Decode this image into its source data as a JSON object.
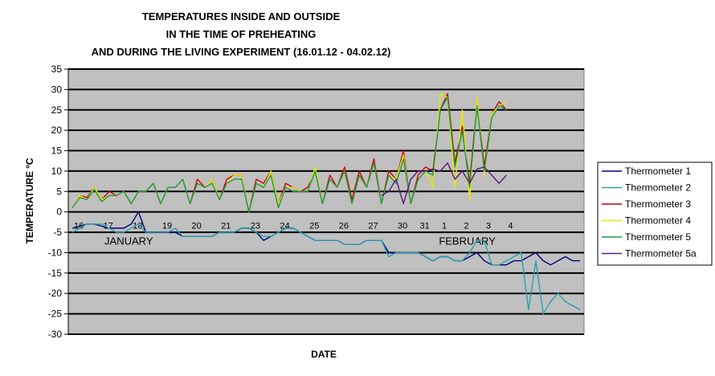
{
  "chart_data": {
    "type": "line",
    "title": [
      "TEMPERATURES INSIDE AND OUTSIDE",
      "IN THE TIME OF PREHEATING",
      "AND DURING THE LIVING EXPERIMENT (16.01.12 - 04.02.12)"
    ],
    "xlabel": "DATE",
    "ylabel": "TEMPERATURE ºC",
    "ylim": [
      -30,
      35
    ],
    "yticks": [
      35,
      30,
      25,
      20,
      15,
      10,
      5,
      0,
      -5,
      -10,
      -15,
      -20,
      -25,
      -30
    ],
    "grid": "horizontal",
    "legend": "right",
    "plot_background": "#c0c0c0",
    "x_count": 70,
    "date_labels": [
      {
        "label": "16",
        "x": 0
      },
      {
        "label": "17",
        "x": 4
      },
      {
        "label": "18",
        "x": 8
      },
      {
        "label": "19",
        "x": 12
      },
      {
        "label": "20",
        "x": 16
      },
      {
        "label": "21",
        "x": 20
      },
      {
        "label": "23",
        "x": 24
      },
      {
        "label": "24",
        "x": 28
      },
      {
        "label": "25",
        "x": 32
      },
      {
        "label": "26",
        "x": 36
      },
      {
        "label": "27",
        "x": 40
      },
      {
        "label": "30",
        "x": 44
      },
      {
        "label": "31",
        "x": 47
      },
      {
        "label": "1",
        "x": 50
      },
      {
        "label": "2",
        "x": 53
      },
      {
        "label": "3",
        "x": 56
      },
      {
        "label": "4",
        "x": 59
      }
    ],
    "month_labels": [
      {
        "label": "JANUARY",
        "x": 8
      },
      {
        "label": "FEBRUARY",
        "x": 54
      }
    ],
    "series": [
      {
        "name": "Thermometer 1",
        "color": "#000080",
        "values": [
          -4,
          -3.5,
          -3,
          -3,
          -3.5,
          -4,
          -4,
          -4,
          -3,
          0,
          -5,
          -5,
          -5,
          -5,
          -5,
          -6,
          -6,
          -6,
          -6,
          -6,
          -5,
          -5,
          -5,
          -4,
          -4,
          -5,
          -7,
          -6,
          -5,
          -4,
          -4,
          -5,
          -6,
          -7,
          -7,
          -7,
          -7,
          -8,
          -8,
          -8,
          -7,
          -7,
          -7,
          -10,
          -10,
          -10,
          -10,
          -10,
          -11,
          -12,
          -11,
          -11,
          -12,
          -12,
          -11,
          -10,
          -12,
          -13,
          -13,
          -13,
          -12,
          -12,
          -11,
          -10,
          -12,
          -13,
          -12,
          -11,
          -12,
          -12
        ]
      },
      {
        "name": "Thermometer 2",
        "color": "#2aa0b0",
        "values": [
          -5,
          -4,
          -3,
          -3,
          -3,
          -4,
          -5,
          -5,
          -4,
          -3,
          -5,
          -5,
          -5,
          -5,
          -4,
          -6,
          -6,
          -6,
          -6,
          -6,
          -5,
          -5,
          -5,
          -4,
          -4,
          -5,
          -6,
          -6,
          -5,
          -4,
          -4,
          -5,
          -6,
          -7,
          -7,
          -7,
          -7,
          -8,
          -8,
          -8,
          -7,
          -7,
          -7,
          -11,
          -10,
          -10,
          -10,
          -10,
          -11,
          -12,
          -11,
          -11,
          -12,
          -12,
          -10,
          -7,
          -7,
          -13,
          -13,
          -12,
          -11,
          -10,
          -24,
          -12,
          -25,
          -22,
          -20,
          -22,
          -23,
          -24
        ]
      },
      {
        "name": "Thermometer 3",
        "color": "#cc0000",
        "values": [
          1,
          4,
          3.5,
          6,
          3,
          5,
          4,
          5,
          2,
          5,
          5,
          7,
          2,
          6,
          6,
          8,
          2,
          8,
          6,
          8,
          3,
          8,
          9,
          9,
          0,
          8,
          7,
          10,
          2,
          7,
          6,
          5,
          6,
          10,
          2,
          9,
          6,
          11,
          3,
          10,
          6,
          13,
          2,
          10,
          8,
          15,
          2,
          9,
          11,
          10,
          25,
          29,
          12,
          21,
          7,
          27,
          11,
          24,
          27,
          25
        ]
      },
      {
        "name": "Thermometer 4",
        "color": "#e8e800",
        "values": [
          1,
          4,
          3,
          6,
          3,
          4,
          4,
          5,
          2,
          5,
          5,
          7,
          2,
          6,
          6,
          8,
          2,
          7,
          6,
          8,
          3,
          7,
          9,
          9,
          0,
          7,
          6,
          10,
          2,
          6,
          6,
          5,
          5,
          11,
          2,
          8,
          6,
          10,
          2,
          9,
          6,
          12,
          2,
          9,
          8,
          14,
          2,
          8,
          10,
          6,
          29,
          28,
          6,
          25,
          3,
          28,
          9,
          24,
          26,
          27
        ]
      },
      {
        "name": "Thermometer 5",
        "color": "#1a9a4a",
        "values": [
          1,
          3.5,
          3,
          5.5,
          2.5,
          4,
          4,
          5,
          2,
          5,
          5,
          7,
          2,
          6,
          6,
          8,
          2,
          7,
          6,
          7,
          3,
          7,
          8,
          8,
          0,
          7,
          6,
          9,
          1,
          6,
          5,
          5,
          5,
          10,
          2,
          8,
          6,
          10,
          2,
          9,
          6,
          12,
          2,
          9,
          7,
          13,
          2,
          8,
          10,
          9,
          25,
          28,
          11,
          20,
          6,
          26,
          10,
          23,
          26,
          25
        ]
      },
      {
        "name": "Thermometer 5a",
        "color": "#5a1a7a",
        "values": [
          null,
          null,
          null,
          null,
          null,
          null,
          null,
          null,
          null,
          null,
          null,
          null,
          null,
          null,
          null,
          null,
          null,
          null,
          null,
          null,
          null,
          null,
          null,
          null,
          null,
          null,
          null,
          null,
          null,
          null,
          null,
          null,
          null,
          null,
          null,
          null,
          null,
          null,
          null,
          null,
          null,
          null,
          4,
          5,
          8,
          2,
          8,
          10,
          10,
          10.5,
          10,
          12,
          8,
          10,
          7,
          10.5,
          11,
          9,
          7,
          9
        ]
      }
    ]
  }
}
